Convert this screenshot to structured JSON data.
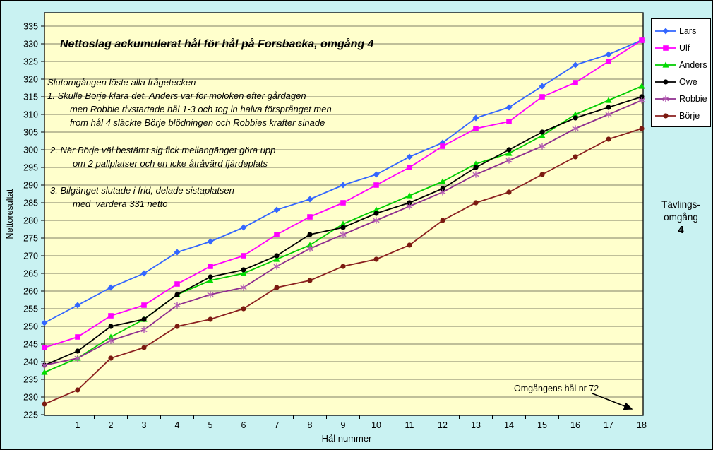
{
  "chart_data": {
    "type": "line",
    "title": "Nettoslag ackumulerat hål för hål på Forsbacka, omgång 4",
    "xlabel": "Hål nummer",
    "ylabel": "Nettoresultat",
    "ylim": [
      225,
      335
    ],
    "ytick_step": 5,
    "grid": true,
    "legend_position": "right",
    "x_labels": [
      "",
      "1",
      "2",
      "3",
      "4",
      "5",
      "6",
      "7",
      "8",
      "9",
      "10",
      "11",
      "12",
      "13",
      "14",
      "15",
      "16",
      "17",
      "18"
    ],
    "series": [
      {
        "name": "Lars",
        "color": "#3366ff",
        "marker": "diamond",
        "marker_color": "#3366ff",
        "values": [
          251,
          256,
          261,
          265,
          271,
          274,
          278,
          283,
          286,
          290,
          293,
          298,
          302,
          309,
          312,
          318,
          324,
          327,
          331
        ]
      },
      {
        "name": "Ulf",
        "color": "#ff00ff",
        "marker": "square",
        "marker_color": "#ff00ff",
        "values": [
          244,
          247,
          253,
          256,
          262,
          267,
          270,
          276,
          281,
          285,
          290,
          295,
          301,
          306,
          308,
          315,
          319,
          325,
          331
        ]
      },
      {
        "name": "Anders",
        "color": "#00cc00",
        "marker": "triangle",
        "marker_color": "#00dd00",
        "values": [
          237,
          241,
          247,
          252,
          259,
          263,
          265,
          269,
          273,
          279,
          283,
          287,
          291,
          296,
          299,
          304,
          310,
          314,
          318
        ]
      },
      {
        "name": "Owe",
        "color": "#000000",
        "marker": "circle",
        "marker_color": "#000000",
        "values": [
          239,
          243,
          250,
          252,
          259,
          264,
          266,
          270,
          276,
          278,
          282,
          285,
          289,
          295,
          300,
          305,
          309,
          312,
          315
        ]
      },
      {
        "name": "Robbie",
        "color": "#8e2d8e",
        "marker": "asterisk",
        "marker_color": "#b45cb4",
        "values": [
          239,
          241,
          246,
          249,
          256,
          259,
          261,
          267,
          272,
          276,
          280,
          284,
          288,
          293,
          297,
          301,
          306,
          310,
          314
        ]
      },
      {
        "name": "Börje",
        "color": "#8b2020",
        "marker": "circle",
        "marker_color": "#7b1a10",
        "values": [
          228,
          232,
          241,
          244,
          250,
          252,
          255,
          261,
          263,
          267,
          269,
          273,
          280,
          285,
          288,
          293,
          298,
          303,
          306
        ]
      }
    ]
  },
  "annotations": {
    "block_a": [
      {
        "text": "Slutomgången löste alla frågetecken",
        "indent": 0
      },
      {
        "text": "1. Skulle Börje klara det. Anders var för moloken efter gårdagen",
        "indent": 0
      },
      {
        "text": "men Robbie rivstartade hål 1-3 och tog in halva försprånget men",
        "indent": 1
      },
      {
        "text": "from hål 4 släckte Börje blödningen och Robbies krafter sinade",
        "indent": 1
      }
    ],
    "block_b": [
      {
        "text": "2. När Börje väl bestämt sig fick mellangänget göra upp",
        "indent": 0
      },
      {
        "text": "om 2 pallplatser och en icke åtråvärd fjärdeplats",
        "indent": 1
      }
    ],
    "block_c": [
      {
        "text": "3. Bilgänget slutade i frid, delade sistaplatsen",
        "indent": 0
      },
      {
        "text": "med  vardera 331 netto",
        "indent": 1
      }
    ],
    "hole72_label": "Omgångens hål nr 72",
    "side_label_line1": "Tävlings-",
    "side_label_line2": "omgång",
    "side_label_number": "4"
  },
  "colors": {
    "page_bg": "#c9f2f2",
    "plot_bg": "#ffffcc",
    "grid": "#7f7f66",
    "axis": "#000000",
    "legend_bg": "#ffffff"
  }
}
